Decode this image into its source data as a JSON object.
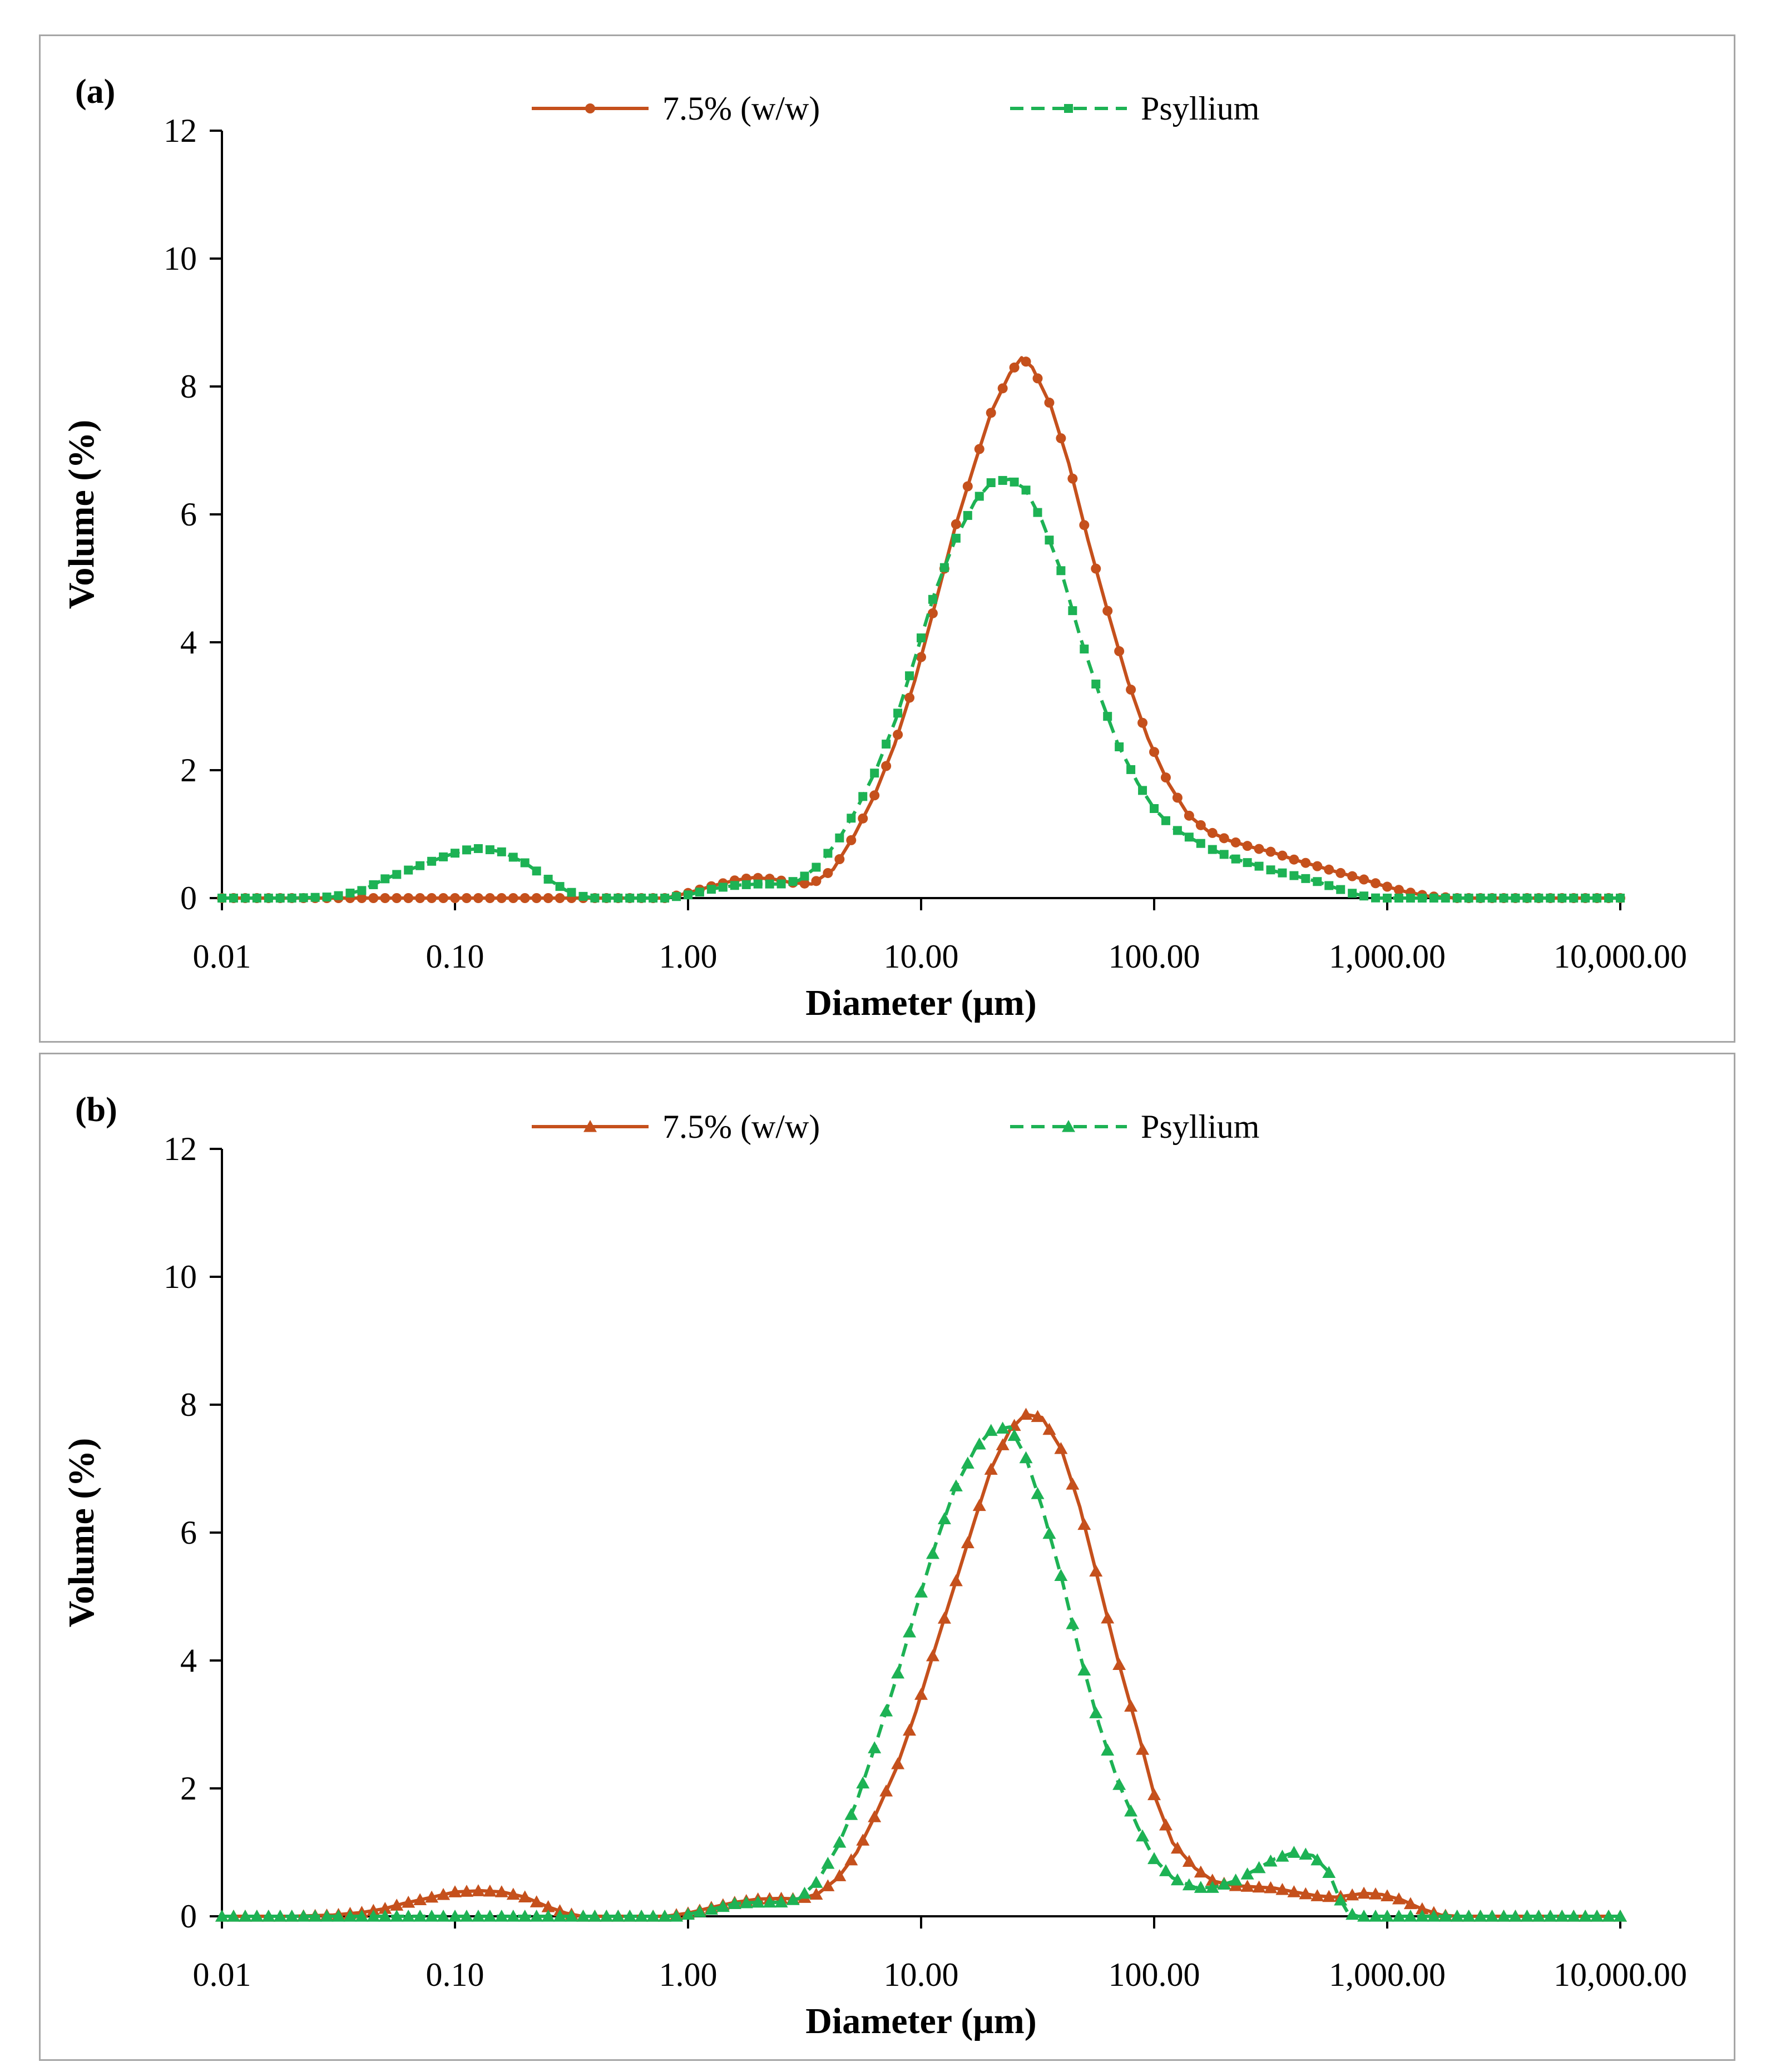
{
  "colors": {
    "series_1": "#c5501c",
    "series_2": "#1db254",
    "axis": "#000000",
    "frame": "#a6a6a6"
  },
  "chart_data": [
    {
      "panel_label": "(a)",
      "type": "line",
      "xlabel": "Diameter (μm)",
      "ylabel": "Volume (%)",
      "x_scale": "log",
      "xlim": [
        0.01,
        10000
      ],
      "ylim": [
        0,
        12
      ],
      "x_ticks": [
        0.01,
        0.1,
        1,
        10,
        100,
        1000,
        10000
      ],
      "x_tick_labels": [
        "0.01",
        "0.10",
        "1.00",
        "10.00",
        "100.00",
        "1,000.00",
        "10,000.00"
      ],
      "y_ticks": [
        0,
        2,
        4,
        6,
        8,
        10,
        12
      ],
      "y_tick_labels": [
        "0",
        "2",
        "4",
        "6",
        "8",
        "10",
        "12"
      ],
      "legend_position": "top",
      "grid": false,
      "series": [
        {
          "name": "7.5% (w/w)",
          "color": "#c5501c",
          "line": "solid",
          "marker": "circle",
          "points": [
            [
              0.01,
              0
            ],
            [
              0.03,
              0
            ],
            [
              0.1,
              0
            ],
            [
              0.3,
              0
            ],
            [
              0.8,
              0
            ],
            [
              1.0,
              0.08
            ],
            [
              1.3,
              0.2
            ],
            [
              1.6,
              0.28
            ],
            [
              1.9,
              0.32
            ],
            [
              2.3,
              0.3
            ],
            [
              2.8,
              0.24
            ],
            [
              3.4,
              0.22
            ],
            [
              4.2,
              0.45
            ],
            [
              5.2,
              1.0
            ],
            [
              6.3,
              1.6
            ],
            [
              7.7,
              2.4
            ],
            [
              9.4,
              3.4
            ],
            [
              11.5,
              4.6
            ],
            [
              14.0,
              5.8
            ],
            [
              17.0,
              6.8
            ],
            [
              20.0,
              7.6
            ],
            [
              24.0,
              8.2
            ],
            [
              27.0,
              8.45
            ],
            [
              30.0,
              8.3
            ],
            [
              36.0,
              7.7
            ],
            [
              43.0,
              6.8
            ],
            [
              52.0,
              5.6
            ],
            [
              63.0,
              4.5
            ],
            [
              77.0,
              3.4
            ],
            [
              94.0,
              2.5
            ],
            [
              115.0,
              1.8
            ],
            [
              140.0,
              1.3
            ],
            [
              170.0,
              1.05
            ],
            [
              210.0,
              0.9
            ],
            [
              260.0,
              0.8
            ],
            [
              320.0,
              0.72
            ],
            [
              400.0,
              0.6
            ],
            [
              500.0,
              0.5
            ],
            [
              620.0,
              0.4
            ],
            [
              780.0,
              0.3
            ],
            [
              950.0,
              0.2
            ],
            [
              1200,
              0.1
            ],
            [
              1500,
              0.03
            ],
            [
              2000,
              0
            ],
            [
              5000,
              0
            ],
            [
              10000,
              0
            ]
          ]
        },
        {
          "name": "Psyllium",
          "color": "#1db254",
          "line": "dashed",
          "marker": "square",
          "points": [
            [
              0.01,
              0
            ],
            [
              0.02,
              0
            ],
            [
              0.03,
              0.02
            ],
            [
              0.04,
              0.12
            ],
            [
              0.05,
              0.3
            ],
            [
              0.07,
              0.5
            ],
            [
              0.09,
              0.65
            ],
            [
              0.11,
              0.75
            ],
            [
              0.13,
              0.78
            ],
            [
              0.16,
              0.72
            ],
            [
              0.2,
              0.55
            ],
            [
              0.25,
              0.3
            ],
            [
              0.3,
              0.12
            ],
            [
              0.35,
              0.03
            ],
            [
              0.4,
              0
            ],
            [
              0.8,
              0
            ],
            [
              1.0,
              0.05
            ],
            [
              1.3,
              0.15
            ],
            [
              1.6,
              0.2
            ],
            [
              2.0,
              0.22
            ],
            [
              2.5,
              0.22
            ],
            [
              3.0,
              0.28
            ],
            [
              3.6,
              0.5
            ],
            [
              4.4,
              0.9
            ],
            [
              5.3,
              1.4
            ],
            [
              6.4,
              2.0
            ],
            [
              7.8,
              2.8
            ],
            [
              9.5,
              3.8
            ],
            [
              11.5,
              4.8
            ],
            [
              14.0,
              5.6
            ],
            [
              17.0,
              6.2
            ],
            [
              20.0,
              6.5
            ],
            [
              24.0,
              6.55
            ],
            [
              28.0,
              6.4
            ],
            [
              33.0,
              5.9
            ],
            [
              40.0,
              5.1
            ],
            [
              48.0,
              4.1
            ],
            [
              58.0,
              3.2
            ],
            [
              70.0,
              2.4
            ],
            [
              85.0,
              1.8
            ],
            [
              100.0,
              1.4
            ],
            [
              120.0,
              1.1
            ],
            [
              150.0,
              0.9
            ],
            [
              180.0,
              0.75
            ],
            [
              220.0,
              0.62
            ],
            [
              270.0,
              0.52
            ],
            [
              330.0,
              0.42
            ],
            [
              400.0,
              0.35
            ],
            [
              500.0,
              0.26
            ],
            [
              600.0,
              0.16
            ],
            [
              700.0,
              0.08
            ],
            [
              800.0,
              0.03
            ],
            [
              900.0,
              0
            ],
            [
              5000,
              0
            ],
            [
              10000,
              0
            ]
          ]
        }
      ]
    },
    {
      "panel_label": "(b)",
      "type": "line",
      "xlabel": "Diameter (μm)",
      "ylabel": "Volume (%)",
      "x_scale": "log",
      "xlim": [
        0.01,
        10000
      ],
      "ylim": [
        0,
        12
      ],
      "x_ticks": [
        0.01,
        0.1,
        1,
        10,
        100,
        1000,
        10000
      ],
      "x_tick_labels": [
        "0.01",
        "0.10",
        "1.00",
        "10.00",
        "100.00",
        "1,000.00",
        "10,000.00"
      ],
      "y_ticks": [
        0,
        2,
        4,
        6,
        8,
        10,
        12
      ],
      "y_tick_labels": [
        "0",
        "2",
        "4",
        "6",
        "8",
        "10",
        "12"
      ],
      "legend_position": "top",
      "grid": false,
      "series": [
        {
          "name": "7.5% (w/w)",
          "color": "#c5501c",
          "line": "solid",
          "marker": "triangle",
          "points": [
            [
              0.01,
              0
            ],
            [
              0.02,
              0
            ],
            [
              0.03,
              0.02
            ],
            [
              0.04,
              0.06
            ],
            [
              0.05,
              0.12
            ],
            [
              0.06,
              0.2
            ],
            [
              0.08,
              0.3
            ],
            [
              0.1,
              0.38
            ],
            [
              0.13,
              0.4
            ],
            [
              0.16,
              0.38
            ],
            [
              0.2,
              0.3
            ],
            [
              0.25,
              0.15
            ],
            [
              0.3,
              0.05
            ],
            [
              0.35,
              0
            ],
            [
              0.8,
              0
            ],
            [
              1.0,
              0.05
            ],
            [
              1.3,
              0.15
            ],
            [
              1.6,
              0.22
            ],
            [
              2.0,
              0.27
            ],
            [
              2.5,
              0.28
            ],
            [
              3.0,
              0.27
            ],
            [
              3.6,
              0.35
            ],
            [
              4.4,
              0.6
            ],
            [
              5.3,
              1.0
            ],
            [
              6.4,
              1.6
            ],
            [
              7.8,
              2.3
            ],
            [
              9.5,
              3.2
            ],
            [
              11.5,
              4.2
            ],
            [
              14.0,
              5.2
            ],
            [
              17.0,
              6.2
            ],
            [
              20.0,
              7.0
            ],
            [
              24.0,
              7.6
            ],
            [
              28.0,
              7.85
            ],
            [
              33.0,
              7.8
            ],
            [
              40.0,
              7.3
            ],
            [
              48.0,
              6.4
            ],
            [
              58.0,
              5.2
            ],
            [
              70.0,
              4.0
            ],
            [
              85.0,
              2.9
            ],
            [
              100.0,
              1.9
            ],
            [
              120.0,
              1.15
            ],
            [
              150.0,
              0.75
            ],
            [
              180.0,
              0.55
            ],
            [
              220.0,
              0.48
            ],
            [
              270.0,
              0.46
            ],
            [
              330.0,
              0.44
            ],
            [
              400.0,
              0.38
            ],
            [
              500.0,
              0.32
            ],
            [
              600.0,
              0.3
            ],
            [
              700.0,
              0.33
            ],
            [
              800.0,
              0.36
            ],
            [
              950.0,
              0.34
            ],
            [
              1150,
              0.26
            ],
            [
              1400,
              0.12
            ],
            [
              1700,
              0.02
            ],
            [
              2000,
              0
            ],
            [
              5000,
              0
            ],
            [
              10000,
              0
            ]
          ]
        },
        {
          "name": "Psyllium",
          "color": "#1db254",
          "line": "dashed",
          "marker": "triangle",
          "points": [
            [
              0.01,
              0
            ],
            [
              0.1,
              0
            ],
            [
              0.5,
              0
            ],
            [
              0.9,
              0
            ],
            [
              1.0,
              0.03
            ],
            [
              1.3,
              0.12
            ],
            [
              1.6,
              0.2
            ],
            [
              2.0,
              0.22
            ],
            [
              2.5,
              0.22
            ],
            [
              3.0,
              0.28
            ],
            [
              3.6,
              0.55
            ],
            [
              4.4,
              1.1
            ],
            [
              5.3,
              1.8
            ],
            [
              6.4,
              2.7
            ],
            [
              7.8,
              3.7
            ],
            [
              9.5,
              4.8
            ],
            [
              11.5,
              5.8
            ],
            [
              14.0,
              6.7
            ],
            [
              17.0,
              7.3
            ],
            [
              20.0,
              7.6
            ],
            [
              24.0,
              7.65
            ],
            [
              28.0,
              7.2
            ],
            [
              33.0,
              6.4
            ],
            [
              40.0,
              5.3
            ],
            [
              48.0,
              4.1
            ],
            [
              58.0,
              3.0
            ],
            [
              70.0,
              2.1
            ],
            [
              85.0,
              1.4
            ],
            [
              100.0,
              0.9
            ],
            [
              120.0,
              0.6
            ],
            [
              150.0,
              0.45
            ],
            [
              180.0,
              0.45
            ],
            [
              220.0,
              0.55
            ],
            [
              270.0,
              0.72
            ],
            [
              330.0,
              0.9
            ],
            [
              400.0,
              1.0
            ],
            [
              480.0,
              0.95
            ],
            [
              560.0,
              0.7
            ],
            [
              620.0,
              0.3
            ],
            [
              680.0,
              0.05
            ],
            [
              750.0,
              0
            ],
            [
              5000,
              0
            ],
            [
              10000,
              0
            ]
          ]
        }
      ]
    }
  ]
}
